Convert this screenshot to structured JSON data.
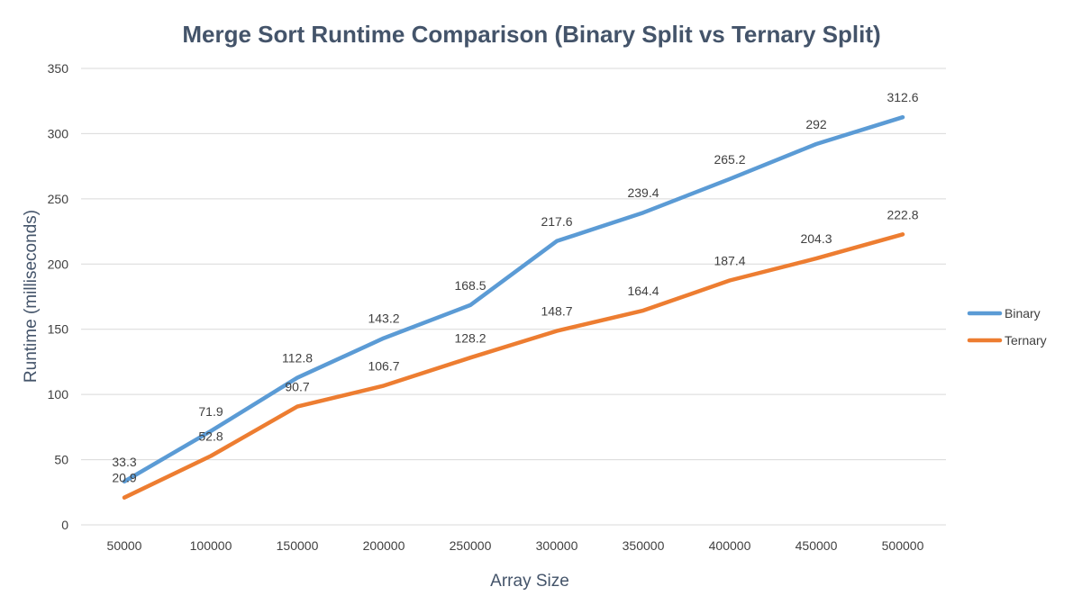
{
  "chart_data": {
    "type": "line",
    "title": "Merge Sort Runtime Comparison (Binary Split vs Ternary Split)",
    "xlabel": "Array Size",
    "ylabel": "Runtime (milliseconds)",
    "categories": [
      "50000",
      "100000",
      "150000",
      "200000",
      "250000",
      "300000",
      "350000",
      "400000",
      "450000",
      "500000"
    ],
    "ylim": [
      0,
      350
    ],
    "yticks": [
      0,
      50,
      100,
      150,
      200,
      250,
      300,
      350
    ],
    "grid": true,
    "legend_position": "right",
    "series": [
      {
        "name": "Binary",
        "color": "#5B9BD5",
        "values": [
          33.3,
          71.9,
          112.8,
          143.2,
          168.5,
          217.6,
          239.4,
          265.2,
          292,
          312.6
        ]
      },
      {
        "name": "Ternary",
        "color": "#ED7D31",
        "values": [
          20.9,
          52.8,
          90.7,
          106.7,
          128.2,
          148.7,
          164.4,
          187.4,
          204.3,
          222.8
        ]
      }
    ]
  }
}
